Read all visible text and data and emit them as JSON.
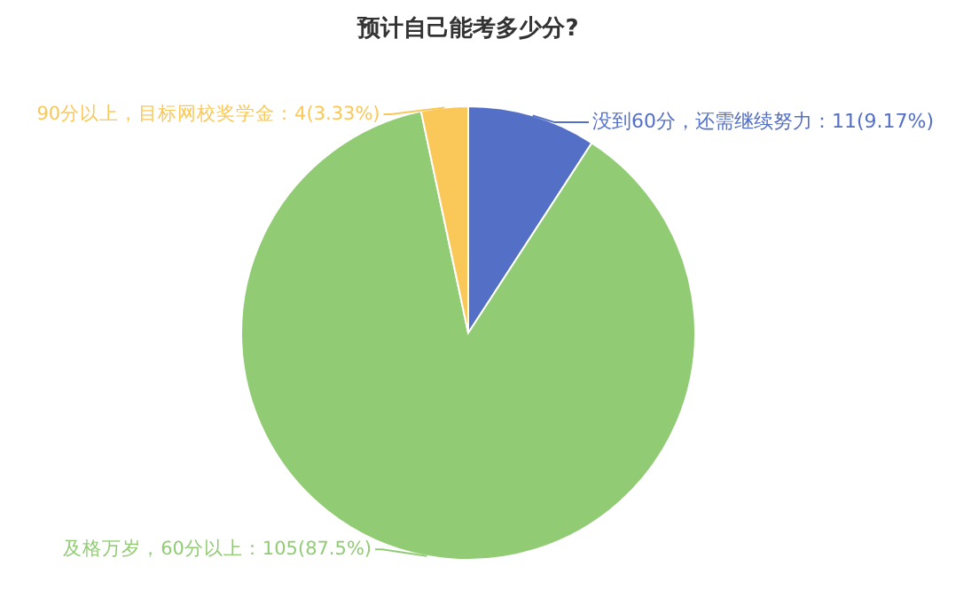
{
  "chart_data": {
    "type": "pie",
    "title": "预计自己能考多少分?",
    "categories": [
      "没到60分，还需继续努力",
      "及格万岁，60分以上",
      "90分以上，目标网校奖学金"
    ],
    "values": [
      11,
      105,
      4
    ],
    "value_labels": [
      "11(9.17%)",
      "105(87.5%)",
      "4(3.33%)"
    ],
    "colors": [
      "#5470c6",
      "#91cc75",
      "#fac858"
    ]
  }
}
